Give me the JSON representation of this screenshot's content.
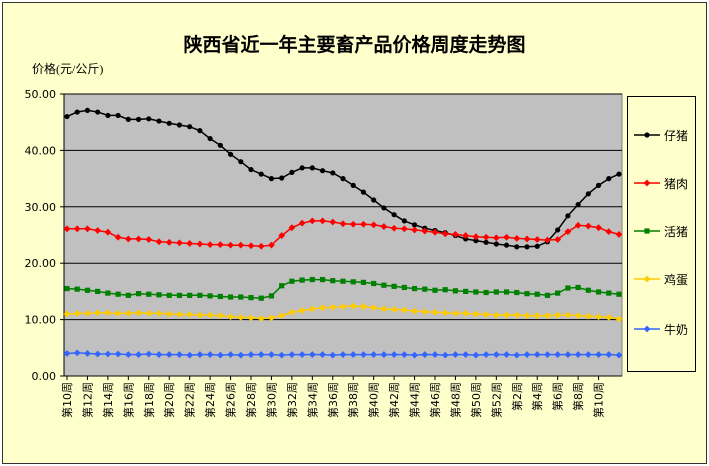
{
  "chart_data": {
    "type": "line",
    "title": "陕西省近一年主要畜产品价格周度走势图",
    "ylabel": "价格(元/公斤)",
    "xlabel": "",
    "ylim": [
      0,
      50
    ],
    "yticks": [
      "0.00",
      "10.00",
      "20.00",
      "30.00",
      "40.00",
      "50.00"
    ],
    "grid": true,
    "legend_position": "right",
    "plot_background": "#C0C0C0",
    "chart_background": "#FFFFCC",
    "x_tick_labels": [
      "第10周",
      "第12周",
      "第14周",
      "第16周",
      "第18周",
      "第20周",
      "第22周",
      "第24周",
      "第26周",
      "第28周",
      "第30周",
      "第32周",
      "第34周",
      "第36周",
      "第38周",
      "第40周",
      "第42周",
      "第44周",
      "第46周",
      "第48周",
      "第50周",
      "第52周",
      "第2周",
      "第4周",
      "第6周",
      "第8周",
      "第10周"
    ],
    "series": [
      {
        "name": "仔猪",
        "color": "#000000",
        "marker": "circle",
        "values": [
          46.0,
          46.8,
          47.1,
          46.8,
          46.2,
          46.2,
          45.5,
          45.5,
          45.6,
          45.2,
          44.8,
          44.5,
          44.2,
          43.5,
          42.1,
          40.9,
          39.3,
          38.0,
          36.6,
          35.8,
          35.0,
          35.1,
          36.1,
          36.9,
          36.9,
          36.4,
          36.0,
          35.0,
          33.8,
          32.6,
          31.2,
          29.8,
          28.6,
          27.5,
          26.8,
          26.2,
          25.8,
          25.4,
          24.9,
          24.3,
          24.0,
          23.7,
          23.4,
          23.2,
          22.9,
          22.9,
          23.0,
          23.8,
          25.9,
          28.4,
          30.4,
          32.3,
          33.8,
          35.0,
          35.8
        ]
      },
      {
        "name": "猪肉",
        "color": "#FF0000",
        "marker": "diamond",
        "values": [
          26.1,
          26.1,
          26.1,
          25.8,
          25.5,
          24.6,
          24.3,
          24.3,
          24.2,
          23.8,
          23.7,
          23.6,
          23.5,
          23.4,
          23.3,
          23.3,
          23.2,
          23.2,
          23.1,
          23.0,
          23.2,
          24.9,
          26.3,
          27.1,
          27.5,
          27.5,
          27.3,
          27.0,
          26.9,
          26.9,
          26.8,
          26.5,
          26.2,
          26.1,
          25.9,
          25.7,
          25.5,
          25.2,
          25.1,
          24.9,
          24.7,
          24.6,
          24.5,
          24.6,
          24.4,
          24.3,
          24.2,
          24.1,
          24.2,
          25.6,
          26.7,
          26.6,
          26.3,
          25.6,
          25.1
        ]
      },
      {
        "name": "活猪",
        "color": "#008000",
        "marker": "square",
        "values": [
          15.5,
          15.4,
          15.2,
          15.0,
          14.7,
          14.5,
          14.3,
          14.6,
          14.5,
          14.4,
          14.3,
          14.3,
          14.3,
          14.3,
          14.2,
          14.1,
          14.0,
          14.0,
          13.9,
          13.8,
          14.2,
          16.0,
          16.8,
          17.0,
          17.1,
          17.1,
          16.9,
          16.8,
          16.7,
          16.6,
          16.4,
          16.1,
          15.9,
          15.7,
          15.5,
          15.4,
          15.2,
          15.3,
          15.1,
          15.0,
          14.9,
          14.8,
          14.9,
          14.9,
          14.8,
          14.6,
          14.5,
          14.3,
          14.7,
          15.6,
          15.7,
          15.2,
          14.9,
          14.7,
          14.5
        ]
      },
      {
        "name": "鸡蛋",
        "color": "#FFCC00",
        "marker": "diamond",
        "values": [
          11.0,
          11.1,
          11.1,
          11.2,
          11.2,
          11.1,
          11.1,
          11.2,
          11.1,
          11.1,
          11.0,
          10.9,
          10.9,
          10.8,
          10.8,
          10.7,
          10.5,
          10.4,
          10.3,
          10.2,
          10.3,
          10.7,
          11.3,
          11.6,
          11.9,
          12.1,
          12.2,
          12.3,
          12.4,
          12.3,
          12.1,
          11.9,
          11.8,
          11.7,
          11.5,
          11.4,
          11.3,
          11.2,
          11.1,
          11.1,
          11.0,
          10.9,
          10.8,
          10.8,
          10.8,
          10.7,
          10.7,
          10.7,
          10.8,
          10.8,
          10.7,
          10.6,
          10.5,
          10.4,
          10.1
        ]
      },
      {
        "name": "牛奶",
        "color": "#3366FF",
        "marker": "diamond",
        "values": [
          4.0,
          4.1,
          4.0,
          3.9,
          3.9,
          3.9,
          3.8,
          3.8,
          3.9,
          3.8,
          3.8,
          3.8,
          3.7,
          3.8,
          3.8,
          3.7,
          3.8,
          3.7,
          3.8,
          3.8,
          3.8,
          3.7,
          3.8,
          3.8,
          3.8,
          3.8,
          3.7,
          3.8,
          3.8,
          3.8,
          3.8,
          3.8,
          3.8,
          3.8,
          3.7,
          3.8,
          3.8,
          3.7,
          3.8,
          3.8,
          3.7,
          3.8,
          3.8,
          3.8,
          3.7,
          3.8,
          3.8,
          3.8,
          3.8,
          3.8,
          3.8,
          3.8,
          3.8,
          3.8,
          3.7
        ]
      }
    ]
  }
}
